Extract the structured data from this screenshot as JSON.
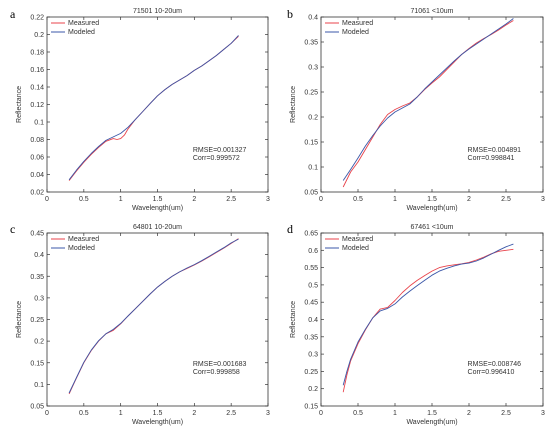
{
  "chart_data": [
    {
      "panel": "a",
      "type": "line",
      "title": "71501 10-20um",
      "xlabel": "Wavelength(um)",
      "ylabel": "Reflectance",
      "xlim": [
        0,
        3
      ],
      "ylim": [
        0.02,
        0.22
      ],
      "xticks": [
        "0",
        "0.5",
        "1",
        "1.5",
        "2",
        "2.5",
        "3"
      ],
      "yticks": [
        "0.02",
        "0.04",
        "0.06",
        "0.08",
        "0.1",
        "0.12",
        "0.14",
        "0.16",
        "0.18",
        "0.2",
        "0.22"
      ],
      "grid": false,
      "legend": "top-left",
      "stats": [
        "RMSE=0.001327",
        "Corr=0.999572"
      ],
      "series": [
        {
          "name": "Measured",
          "color": "#e8434b",
          "x": [
            0.3,
            0.4,
            0.5,
            0.6,
            0.7,
            0.8,
            0.9,
            0.95,
            1.0,
            1.05,
            1.1,
            1.2,
            1.3,
            1.4,
            1.5,
            1.6,
            1.7,
            1.8,
            1.9,
            2.0,
            2.1,
            2.2,
            2.3,
            2.4,
            2.5,
            2.55,
            2.6
          ],
          "y": [
            0.033,
            0.044,
            0.054,
            0.063,
            0.071,
            0.078,
            0.081,
            0.08,
            0.081,
            0.085,
            0.092,
            0.103,
            0.112,
            0.121,
            0.13,
            0.137,
            0.143,
            0.148,
            0.153,
            0.159,
            0.164,
            0.17,
            0.176,
            0.183,
            0.19,
            0.194,
            0.198
          ]
        },
        {
          "name": "Modeled",
          "color": "#3b57a8",
          "x": [
            0.3,
            0.4,
            0.5,
            0.6,
            0.7,
            0.8,
            0.9,
            1.0,
            1.1,
            1.2,
            1.3,
            1.4,
            1.5,
            1.6,
            1.7,
            1.8,
            1.9,
            2.0,
            2.1,
            2.2,
            2.3,
            2.4,
            2.5,
            2.6
          ],
          "y": [
            0.034,
            0.045,
            0.055,
            0.064,
            0.072,
            0.079,
            0.083,
            0.087,
            0.094,
            0.103,
            0.112,
            0.121,
            0.13,
            0.137,
            0.143,
            0.148,
            0.153,
            0.159,
            0.164,
            0.17,
            0.176,
            0.183,
            0.19,
            0.199
          ]
        }
      ]
    },
    {
      "panel": "b",
      "type": "line",
      "title": "71061 <10um",
      "xlabel": "Wavelength(um)",
      "ylabel": "Reflectance",
      "xlim": [
        0,
        3
      ],
      "ylim": [
        0.05,
        0.4
      ],
      "xticks": [
        "0",
        "0.5",
        "1",
        "1.5",
        "2",
        "2.5",
        "3"
      ],
      "yticks": [
        "0.05",
        "0.1",
        "0.15",
        "0.2",
        "0.25",
        "0.3",
        "0.35",
        "0.4"
      ],
      "grid": false,
      "legend": "top-left",
      "stats": [
        "RMSE=0.004891",
        "Corr=0.998841"
      ],
      "series": [
        {
          "name": "Measured",
          "color": "#e8434b",
          "x": [
            0.3,
            0.4,
            0.5,
            0.6,
            0.7,
            0.8,
            0.9,
            1.0,
            1.1,
            1.2,
            1.3,
            1.4,
            1.5,
            1.6,
            1.7,
            1.8,
            1.9,
            2.0,
            2.1,
            2.2,
            2.3,
            2.4,
            2.5,
            2.6
          ],
          "y": [
            0.06,
            0.09,
            0.11,
            0.135,
            0.16,
            0.185,
            0.205,
            0.215,
            0.222,
            0.228,
            0.24,
            0.255,
            0.268,
            0.28,
            0.295,
            0.31,
            0.325,
            0.337,
            0.348,
            0.357,
            0.365,
            0.374,
            0.384,
            0.393
          ]
        },
        {
          "name": "Modeled",
          "color": "#3b57a8",
          "x": [
            0.3,
            0.4,
            0.5,
            0.6,
            0.7,
            0.8,
            0.9,
            1.0,
            1.1,
            1.2,
            1.3,
            1.4,
            1.5,
            1.6,
            1.7,
            1.8,
            1.9,
            2.0,
            2.1,
            2.2,
            2.3,
            2.4,
            2.5,
            2.6
          ],
          "y": [
            0.073,
            0.095,
            0.118,
            0.142,
            0.163,
            0.182,
            0.198,
            0.21,
            0.218,
            0.226,
            0.24,
            0.256,
            0.27,
            0.284,
            0.298,
            0.312,
            0.325,
            0.336,
            0.346,
            0.356,
            0.366,
            0.376,
            0.386,
            0.397
          ]
        }
      ]
    },
    {
      "panel": "c",
      "type": "line",
      "title": "64801 10-20um",
      "xlabel": "Wavelength(um)",
      "ylabel": "Reflectance",
      "xlim": [
        0,
        3
      ],
      "ylim": [
        0.05,
        0.45
      ],
      "xticks": [
        "0",
        "0.5",
        "1",
        "1.5",
        "2",
        "2.5",
        "3"
      ],
      "yticks": [
        "0.05",
        "0.1",
        "0.15",
        "0.2",
        "0.25",
        "0.3",
        "0.35",
        "0.4",
        "0.45"
      ],
      "grid": false,
      "legend": "top-left",
      "stats": [
        "RMSE=0.001683",
        "Corr=0.999858"
      ],
      "series": [
        {
          "name": "Measured",
          "color": "#e8434b",
          "x": [
            0.3,
            0.4,
            0.5,
            0.6,
            0.7,
            0.8,
            0.9,
            1.0,
            1.1,
            1.2,
            1.3,
            1.4,
            1.5,
            1.6,
            1.7,
            1.8,
            1.9,
            2.0,
            2.1,
            2.2,
            2.3,
            2.4,
            2.5,
            2.6
          ],
          "y": [
            0.078,
            0.115,
            0.15,
            0.178,
            0.2,
            0.217,
            0.225,
            0.24,
            0.258,
            0.275,
            0.292,
            0.309,
            0.325,
            0.338,
            0.35,
            0.36,
            0.368,
            0.376,
            0.385,
            0.395,
            0.405,
            0.415,
            0.426,
            0.437
          ]
        },
        {
          "name": "Modeled",
          "color": "#3b57a8",
          "x": [
            0.3,
            0.4,
            0.5,
            0.6,
            0.7,
            0.8,
            0.9,
            1.0,
            1.1,
            1.2,
            1.3,
            1.4,
            1.5,
            1.6,
            1.7,
            1.8,
            1.9,
            2.0,
            2.1,
            2.2,
            2.3,
            2.4,
            2.5,
            2.6
          ],
          "y": [
            0.08,
            0.116,
            0.151,
            0.179,
            0.201,
            0.217,
            0.227,
            0.241,
            0.258,
            0.275,
            0.292,
            0.309,
            0.325,
            0.338,
            0.35,
            0.36,
            0.369,
            0.377,
            0.386,
            0.396,
            0.406,
            0.416,
            0.427,
            0.436
          ]
        }
      ]
    },
    {
      "panel": "d",
      "type": "line",
      "title": "67461 <10um",
      "xlabel": "Wavelength(um)",
      "ylabel": "Reflectance",
      "xlim": [
        0,
        3
      ],
      "ylim": [
        0.15,
        0.65
      ],
      "xticks": [
        "0",
        "0.5",
        "1",
        "1.5",
        "2",
        "2.5",
        "3"
      ],
      "yticks": [
        "0.15",
        "0.2",
        "0.25",
        "0.3",
        "0.35",
        "0.4",
        "0.45",
        "0.5",
        "0.55",
        "0.6",
        "0.65"
      ],
      "grid": false,
      "legend": "top-left",
      "stats": [
        "RMSE=0.008746",
        "Corr=0.996410"
      ],
      "series": [
        {
          "name": "Measured",
          "color": "#e8434b",
          "x": [
            0.3,
            0.35,
            0.4,
            0.5,
            0.6,
            0.7,
            0.8,
            0.9,
            1.0,
            1.1,
            1.2,
            1.3,
            1.4,
            1.5,
            1.6,
            1.7,
            1.8,
            1.9,
            2.0,
            2.1,
            2.2,
            2.3,
            2.4,
            2.5,
            2.6
          ],
          "y": [
            0.19,
            0.24,
            0.28,
            0.33,
            0.37,
            0.405,
            0.43,
            0.435,
            0.455,
            0.478,
            0.497,
            0.513,
            0.527,
            0.54,
            0.55,
            0.555,
            0.558,
            0.561,
            0.565,
            0.572,
            0.58,
            0.59,
            0.597,
            0.6,
            0.603
          ]
        },
        {
          "name": "Modeled",
          "color": "#3b57a8",
          "x": [
            0.3,
            0.35,
            0.4,
            0.5,
            0.6,
            0.7,
            0.8,
            0.9,
            1.0,
            1.1,
            1.2,
            1.3,
            1.4,
            1.5,
            1.6,
            1.7,
            1.8,
            1.9,
            2.0,
            2.1,
            2.2,
            2.3,
            2.4,
            2.5,
            2.6
          ],
          "y": [
            0.21,
            0.25,
            0.285,
            0.335,
            0.372,
            0.405,
            0.425,
            0.432,
            0.445,
            0.465,
            0.482,
            0.498,
            0.513,
            0.528,
            0.54,
            0.548,
            0.555,
            0.56,
            0.563,
            0.569,
            0.578,
            0.589,
            0.6,
            0.61,
            0.618
          ]
        }
      ]
    }
  ]
}
